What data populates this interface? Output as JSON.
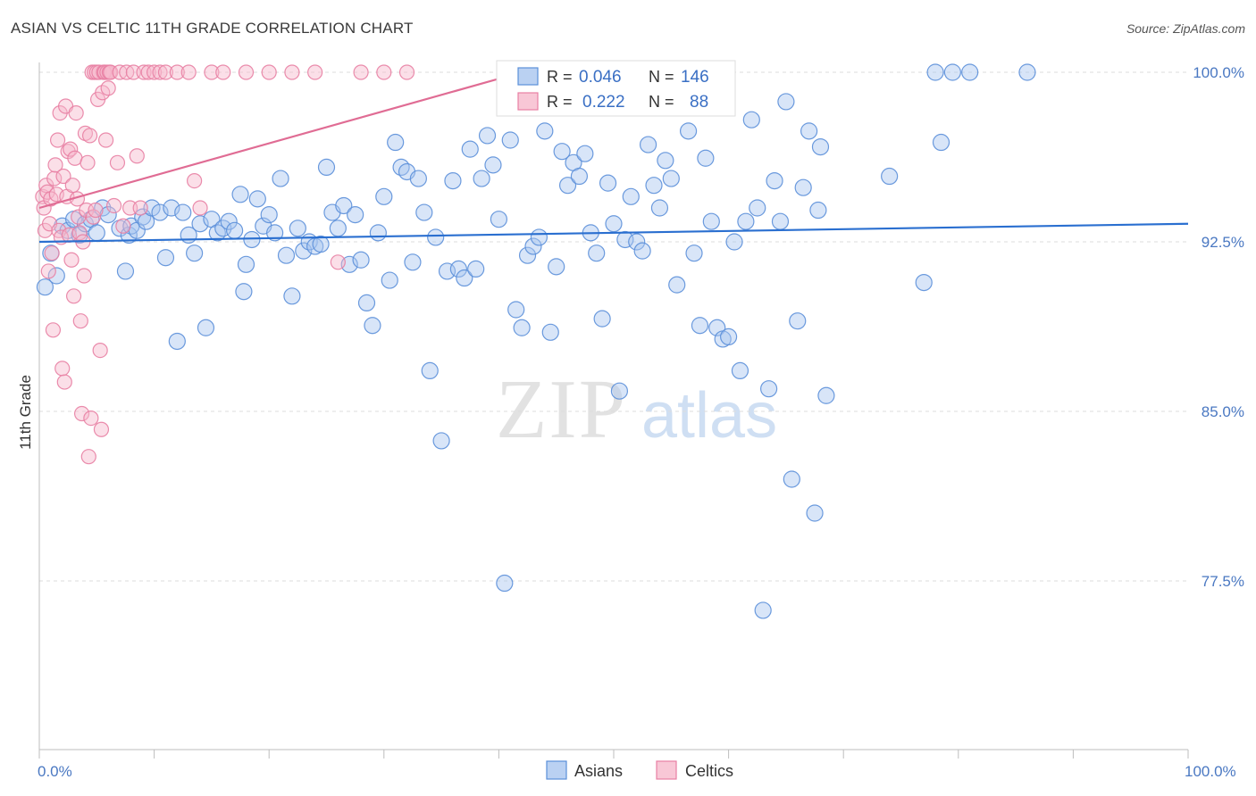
{
  "title": "ASIAN VS CELTIC 11TH GRADE CORRELATION CHART",
  "source": "Source: ZipAtlas.com",
  "chart_data": {
    "type": "scatter",
    "ylabel": "11th Grade",
    "xlim": [
      0,
      100
    ],
    "ylim": [
      70,
      101.5
    ],
    "x_tick_labels": [
      "0.0%",
      "100.0%"
    ],
    "y_ticks": [
      100.0,
      92.5,
      85.0,
      77.5
    ],
    "y_tick_labels": [
      "100.0%",
      "92.5%",
      "85.0%",
      "77.5%"
    ],
    "watermark": {
      "zip": "ZIP",
      "atlas": "atlas"
    },
    "legend": {
      "r_label": "R =",
      "n_label": "N =",
      "entries": [
        {
          "name": "Asians",
          "r": "0.046",
          "n": "146",
          "color": "#5b8fd9"
        },
        {
          "name": "Celtics",
          "r": "0.222",
          "n": "88",
          "color": "#e87fa3"
        }
      ]
    },
    "series": [
      {
        "name": "Asians",
        "color": "#5b8fd9",
        "fill": "#a9c6ef",
        "trend": {
          "x": [
            0,
            100
          ],
          "y": [
            92.5,
            93.3
          ]
        },
        "points": [
          [
            0.5,
            90.5
          ],
          [
            1,
            92.0
          ],
          [
            1.5,
            91.0
          ],
          [
            2,
            93.2
          ],
          [
            2.5,
            93.0
          ],
          [
            3,
            93.5
          ],
          [
            3.5,
            92.8
          ],
          [
            4,
            93.3
          ],
          [
            4.5,
            93.5
          ],
          [
            5,
            92.9
          ],
          [
            5.5,
            94.0
          ],
          [
            6,
            93.7
          ],
          [
            7,
            93.1
          ],
          [
            7.5,
            91.2
          ],
          [
            7.8,
            92.8
          ],
          [
            8,
            93.2
          ],
          [
            8.5,
            93.0
          ],
          [
            9,
            93.6
          ],
          [
            9.3,
            93.4
          ],
          [
            9.8,
            94.0
          ],
          [
            10.5,
            93.8
          ],
          [
            11,
            91.8
          ],
          [
            11.5,
            94.0
          ],
          [
            12,
            88.1
          ],
          [
            12.5,
            93.8
          ],
          [
            13,
            92.8
          ],
          [
            13.5,
            92.0
          ],
          [
            14,
            93.3
          ],
          [
            14.5,
            88.7
          ],
          [
            15,
            93.5
          ],
          [
            15.5,
            92.9
          ],
          [
            16,
            93.1
          ],
          [
            16.5,
            93.4
          ],
          [
            17,
            93.0
          ],
          [
            17.5,
            94.6
          ],
          [
            17.8,
            90.3
          ],
          [
            18,
            91.5
          ],
          [
            18.5,
            92.6
          ],
          [
            19,
            94.4
          ],
          [
            19.5,
            93.2
          ],
          [
            20,
            93.7
          ],
          [
            20.5,
            92.9
          ],
          [
            21,
            95.3
          ],
          [
            21.5,
            91.9
          ],
          [
            22,
            90.1
          ],
          [
            22.5,
            93.1
          ],
          [
            23,
            92.1
          ],
          [
            23.5,
            92.5
          ],
          [
            24,
            92.3
          ],
          [
            24.5,
            92.4
          ],
          [
            25,
            95.8
          ],
          [
            25.5,
            93.8
          ],
          [
            26,
            93.1
          ],
          [
            26.5,
            94.1
          ],
          [
            27,
            91.5
          ],
          [
            27.5,
            93.7
          ],
          [
            28,
            91.7
          ],
          [
            28.5,
            89.8
          ],
          [
            29,
            88.8
          ],
          [
            29.5,
            92.9
          ],
          [
            30,
            94.5
          ],
          [
            30.5,
            90.8
          ],
          [
            31,
            96.9
          ],
          [
            31.5,
            95.8
          ],
          [
            32,
            95.6
          ],
          [
            32.5,
            91.6
          ],
          [
            33,
            95.3
          ],
          [
            33.5,
            93.8
          ],
          [
            34,
            86.8
          ],
          [
            34.5,
            92.7
          ],
          [
            35,
            83.7
          ],
          [
            35.5,
            91.2
          ],
          [
            36,
            95.2
          ],
          [
            36.5,
            91.3
          ],
          [
            37,
            90.9
          ],
          [
            37.5,
            96.6
          ],
          [
            38,
            91.3
          ],
          [
            38.5,
            95.3
          ],
          [
            39,
            97.2
          ],
          [
            39.5,
            95.9
          ],
          [
            40,
            93.5
          ],
          [
            40.5,
            77.4
          ],
          [
            41,
            97.0
          ],
          [
            41.5,
            89.5
          ],
          [
            42,
            88.7
          ],
          [
            42.5,
            91.9
          ],
          [
            43,
            92.3
          ],
          [
            43.5,
            92.7
          ],
          [
            44,
            97.4
          ],
          [
            44.5,
            88.5
          ],
          [
            45,
            91.4
          ],
          [
            45.5,
            96.5
          ],
          [
            46,
            95.0
          ],
          [
            46.5,
            96.0
          ],
          [
            47,
            95.4
          ],
          [
            47.5,
            96.4
          ],
          [
            48,
            92.9
          ],
          [
            48.5,
            92.0
          ],
          [
            49,
            89.1
          ],
          [
            49.5,
            95.1
          ],
          [
            50,
            93.3
          ],
          [
            50.5,
            85.9
          ],
          [
            51,
            92.6
          ],
          [
            51.5,
            94.5
          ],
          [
            52,
            92.5
          ],
          [
            52.5,
            92.1
          ],
          [
            53,
            96.8
          ],
          [
            53.5,
            95.0
          ],
          [
            54,
            94.0
          ],
          [
            54.5,
            96.1
          ],
          [
            55,
            95.3
          ],
          [
            55.5,
            90.6
          ],
          [
            56,
            99.1
          ],
          [
            56.5,
            97.4
          ],
          [
            57,
            92.0
          ],
          [
            57.5,
            88.8
          ],
          [
            58,
            96.2
          ],
          [
            58.5,
            93.4
          ],
          [
            59,
            88.7
          ],
          [
            59.5,
            88.2
          ],
          [
            60,
            88.3
          ],
          [
            60.5,
            92.5
          ],
          [
            61,
            86.8
          ],
          [
            61.5,
            93.4
          ],
          [
            62,
            97.9
          ],
          [
            62.5,
            94.0
          ],
          [
            63,
            76.2
          ],
          [
            63.5,
            86.0
          ],
          [
            64,
            95.2
          ],
          [
            64.5,
            93.4
          ],
          [
            65,
            98.7
          ],
          [
            65.5,
            82.0
          ],
          [
            66,
            89.0
          ],
          [
            66.5,
            94.9
          ],
          [
            67,
            97.4
          ],
          [
            67.5,
            80.5
          ],
          [
            67.8,
            93.9
          ],
          [
            68,
            96.7
          ],
          [
            68.5,
            85.7
          ],
          [
            74,
            95.4
          ],
          [
            77,
            90.7
          ],
          [
            78,
            100.0
          ],
          [
            78.5,
            96.9
          ],
          [
            79.5,
            100.0
          ],
          [
            81,
            100.0
          ],
          [
            86,
            100.0
          ]
        ]
      },
      {
        "name": "Celtics",
        "color": "#e87fa3",
        "fill": "#f6b9cc",
        "trend": {
          "x": [
            0,
            42
          ],
          "y": [
            94.0,
            100.0
          ]
        },
        "points": [
          [
            0.3,
            94.5
          ],
          [
            0.4,
            94.0
          ],
          [
            0.5,
            93.0
          ],
          [
            0.6,
            95.0
          ],
          [
            0.7,
            94.7
          ],
          [
            0.8,
            91.2
          ],
          [
            0.9,
            93.3
          ],
          [
            1.0,
            94.4
          ],
          [
            1.1,
            92.0
          ],
          [
            1.2,
            88.6
          ],
          [
            1.3,
            95.3
          ],
          [
            1.4,
            95.9
          ],
          [
            1.5,
            94.6
          ],
          [
            1.6,
            97.0
          ],
          [
            1.7,
            93.0
          ],
          [
            1.8,
            98.2
          ],
          [
            1.9,
            92.7
          ],
          [
            2.0,
            86.9
          ],
          [
            2.1,
            95.4
          ],
          [
            2.2,
            86.3
          ],
          [
            2.3,
            98.5
          ],
          [
            2.4,
            94.5
          ],
          [
            2.5,
            96.5
          ],
          [
            2.6,
            92.8
          ],
          [
            2.7,
            96.6
          ],
          [
            2.8,
            91.7
          ],
          [
            2.9,
            95.0
          ],
          [
            3.0,
            90.1
          ],
          [
            3.1,
            96.2
          ],
          [
            3.2,
            98.2
          ],
          [
            3.3,
            94.4
          ],
          [
            3.4,
            93.6
          ],
          [
            3.5,
            92.9
          ],
          [
            3.6,
            89.0
          ],
          [
            3.7,
            84.9
          ],
          [
            3.8,
            92.5
          ],
          [
            3.9,
            91.0
          ],
          [
            4.0,
            97.3
          ],
          [
            4.1,
            93.9
          ],
          [
            4.2,
            96.0
          ],
          [
            4.3,
            83.0
          ],
          [
            4.4,
            97.2
          ],
          [
            4.5,
            84.7
          ],
          [
            4.6,
            100.0
          ],
          [
            4.7,
            93.6
          ],
          [
            4.8,
            100.0
          ],
          [
            4.9,
            93.9
          ],
          [
            5.0,
            100.0
          ],
          [
            5.1,
            98.8
          ],
          [
            5.2,
            100.0
          ],
          [
            5.3,
            87.7
          ],
          [
            5.4,
            84.2
          ],
          [
            5.5,
            99.1
          ],
          [
            5.6,
            100.0
          ],
          [
            5.7,
            100.0
          ],
          [
            5.8,
            97.0
          ],
          [
            5.9,
            100.0
          ],
          [
            6.0,
            99.3
          ],
          [
            6.1,
            100.0
          ],
          [
            6.2,
            100.0
          ],
          [
            6.5,
            94.1
          ],
          [
            6.8,
            96.0
          ],
          [
            7.0,
            100.0
          ],
          [
            7.3,
            93.2
          ],
          [
            7.6,
            100.0
          ],
          [
            7.9,
            94.0
          ],
          [
            8.2,
            100.0
          ],
          [
            8.5,
            96.3
          ],
          [
            8.8,
            94.0
          ],
          [
            9.1,
            100.0
          ],
          [
            9.5,
            100.0
          ],
          [
            10,
            100.0
          ],
          [
            10.5,
            100.0
          ],
          [
            11,
            100.0
          ],
          [
            12,
            100.0
          ],
          [
            13,
            100.0
          ],
          [
            13.5,
            95.2
          ],
          [
            14,
            94.0
          ],
          [
            15,
            100.0
          ],
          [
            16,
            100.0
          ],
          [
            18,
            100.0
          ],
          [
            20,
            100.0
          ],
          [
            22,
            100.0
          ],
          [
            24,
            100.0
          ],
          [
            26,
            91.6
          ],
          [
            28,
            100.0
          ],
          [
            30,
            100.0
          ],
          [
            32,
            100.0
          ]
        ]
      }
    ]
  }
}
